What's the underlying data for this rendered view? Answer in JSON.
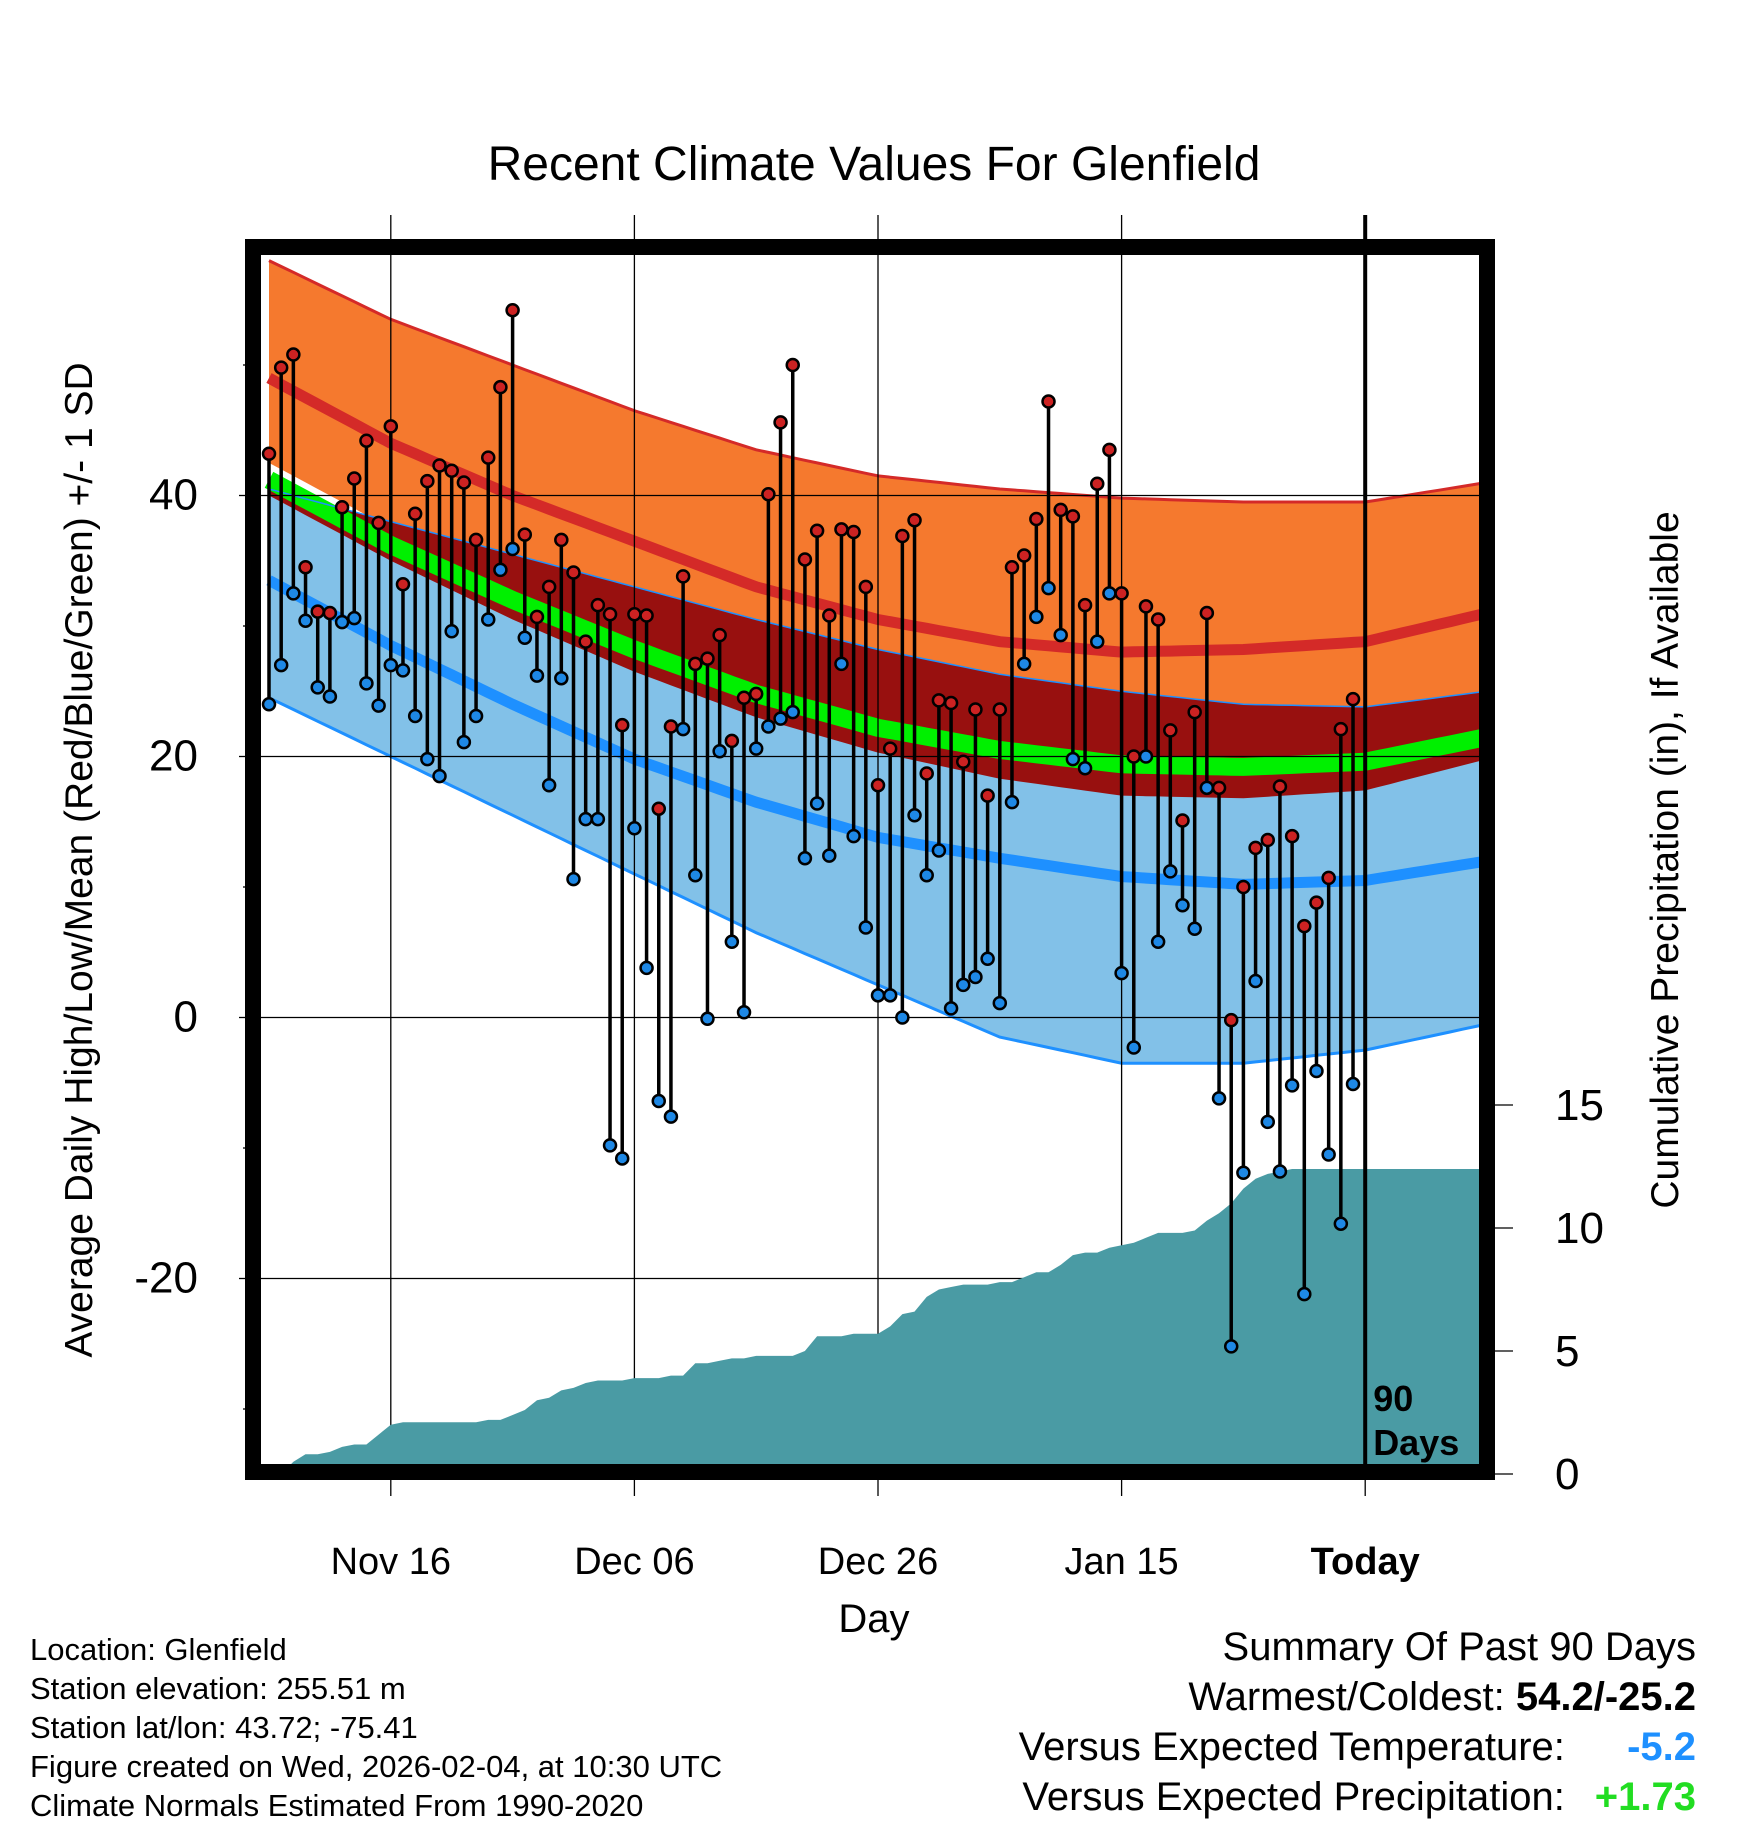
{
  "chart_data": {
    "type": "line",
    "title": "Recent Climate Values For Glenfield",
    "xlabel": "Day",
    "ylabel": "Average Daily High/Low/Mean (Red/Blue/Green) +/- 1 SD",
    "y2label": "Cumulative Precipitation (in), If Available",
    "x_range": [
      -90,
      10
    ],
    "ylim": [
      -34,
      58
    ],
    "y2lim": [
      0,
      17.8
    ],
    "y_ticks": [
      -20,
      0,
      20,
      40
    ],
    "y2_ticks": [
      0,
      5,
      10,
      15
    ],
    "x_ticks": [
      {
        "day": -80,
        "label": "Nov 16"
      },
      {
        "day": -60,
        "label": "Dec 06"
      },
      {
        "day": -40,
        "label": "Dec 26"
      },
      {
        "day": -20,
        "label": "Jan 15"
      },
      {
        "day": 0,
        "label": "Today"
      }
    ],
    "today_day": 0,
    "period_label": [
      "90",
      "Days"
    ],
    "colors": {
      "high_band": "#f5792e",
      "high_line": "#d42a28",
      "low_band": "#82c1e8",
      "low_line": "#1e90ff",
      "mean_band": "#98100f",
      "mean_line": "#00f000",
      "precip": "#4a9ba4",
      "high_dot": "#cc2222",
      "low_dot": "#1e88e5"
    },
    "normals": {
      "days": [
        -90,
        -80,
        -70,
        -60,
        -50,
        -40,
        -30,
        -20,
        -10,
        0,
        10
      ],
      "high_mean": [
        49,
        44,
        40,
        36.5,
        33,
        30.5,
        28.8,
        28,
        28.2,
        28.8,
        31
      ],
      "high_upper": [
        58,
        53.5,
        50,
        46.5,
        43.5,
        41.5,
        40.5,
        39.8,
        39.5,
        39.5,
        41
      ],
      "low_mean": [
        33.5,
        28.5,
        24,
        19.8,
        16.5,
        13.8,
        12.2,
        10.8,
        10.2,
        10.5,
        12
      ],
      "low_lower": [
        24.5,
        20,
        15.5,
        11,
        6.5,
        2.5,
        -1.5,
        -3.5,
        -3.5,
        -2.5,
        -0.5
      ],
      "avg_mean": [
        41.2,
        36.2,
        32,
        28.2,
        24.8,
        22.2,
        20.5,
        19.4,
        19.2,
        19.6,
        21.5
      ],
      "avg_upper": [
        42.5,
        37.5,
        33.3,
        29.5,
        26.1,
        23.5,
        21.8,
        20.7,
        20.5,
        20.9,
        22.8
      ],
      "mean_band_top": [
        40.5,
        38,
        35.5,
        33,
        30.5,
        28.2,
        26.3,
        25,
        24,
        23.8,
        25
      ],
      "mean_band_bottom": [
        40,
        35,
        30.5,
        26.5,
        23,
        20.3,
        18.3,
        17,
        16.8,
        17.4,
        19.8
      ]
    },
    "high_obs": [
      43.2,
      49.8,
      50.8,
      34.5,
      31.1,
      31.0,
      39.1,
      41.3,
      44.2,
      37.9,
      45.3,
      33.2,
      38.6,
      41.1,
      42.3,
      41.9,
      41.0,
      36.6,
      42.9,
      48.3,
      54.2,
      37.0,
      30.7,
      33.0,
      36.6,
      34.1,
      28.8,
      31.6,
      30.9,
      22.4,
      30.9,
      30.8,
      16.0,
      22.3,
      33.8,
      27.1,
      27.5,
      29.3,
      21.2,
      24.5,
      24.8,
      40.1,
      45.6,
      50.0,
      35.1,
      37.3,
      30.8,
      37.4,
      37.2,
      33.0,
      17.8,
      20.6,
      36.9,
      38.1,
      18.7,
      24.3,
      24.1,
      19.6,
      23.6,
      17.0,
      23.6,
      34.5,
      35.4,
      38.2,
      47.2,
      38.9,
      38.4,
      31.6,
      40.9,
      43.5,
      32.5,
      20.0,
      31.5,
      30.5,
      22.0,
      15.1,
      23.4,
      31.0,
      17.6,
      -0.2,
      10.0,
      13.0,
      13.6,
      17.7,
      13.9,
      7.0,
      8.8,
      10.7,
      22.1,
      24.4
    ],
    "low_obs": [
      24.0,
      27.0,
      32.5,
      30.4,
      25.3,
      24.6,
      30.3,
      30.6,
      25.6,
      23.9,
      27.0,
      26.6,
      23.1,
      19.8,
      18.5,
      29.6,
      21.1,
      23.1,
      30.5,
      34.3,
      35.9,
      29.1,
      26.2,
      17.8,
      26.0,
      10.6,
      15.2,
      15.2,
      -9.8,
      -10.8,
      14.5,
      3.8,
      -6.4,
      -7.6,
      22.1,
      10.9,
      -0.1,
      20.4,
      5.8,
      0.4,
      20.6,
      22.3,
      22.9,
      23.4,
      12.2,
      16.4,
      12.4,
      27.1,
      13.9,
      6.9,
      1.7,
      1.7,
      0.0,
      15.5,
      10.9,
      12.8,
      0.7,
      2.5,
      3.1,
      4.5,
      1.1,
      16.5,
      27.1,
      30.7,
      32.9,
      29.3,
      19.8,
      19.1,
      28.8,
      32.5,
      3.4,
      -2.3,
      20.0,
      5.8,
      11.2,
      8.6,
      6.8,
      17.6,
      -6.2,
      -25.2,
      -11.9,
      2.8,
      -8.0,
      -11.8,
      -5.2,
      -21.2,
      -4.1,
      -10.5,
      -15.8,
      -5.1
    ],
    "precip_cum": [
      0.0,
      0.5,
      0.8,
      0.8,
      0.9,
      1.1,
      1.2,
      1.2,
      1.6,
      2.0,
      2.1,
      2.1,
      2.1,
      2.1,
      2.1,
      2.1,
      2.1,
      2.2,
      2.2,
      2.4,
      2.6,
      3.0,
      3.1,
      3.4,
      3.5,
      3.7,
      3.8,
      3.8,
      3.8,
      3.9,
      3.9,
      3.9,
      4.0,
      4.0,
      4.5,
      4.5,
      4.6,
      4.7,
      4.7,
      4.8,
      4.8,
      4.8,
      4.8,
      5.0,
      5.6,
      5.6,
      5.6,
      5.7,
      5.7,
      5.7,
      6.0,
      6.5,
      6.6,
      7.2,
      7.5,
      7.6,
      7.7,
      7.7,
      7.7,
      7.8,
      7.8,
      8.0,
      8.2,
      8.2,
      8.5,
      8.9,
      9.0,
      9.0,
      9.2,
      9.3,
      9.4,
      9.6,
      9.8,
      9.8,
      9.8,
      9.9,
      10.3,
      10.6,
      11.0,
      11.6,
      12.0,
      12.2,
      12.3,
      12.4,
      12.4,
      12.4,
      12.4,
      12.4,
      12.4,
      12.4,
      12.4
    ]
  },
  "info": {
    "location": "Location: Glenfield",
    "elevation": "Station elevation: 255.51 m",
    "latlon": "Station lat/lon: 43.72; -75.41",
    "created": "Figure created on Wed, 2026-02-04, at 10:30 UTC",
    "normals": "Climate Normals Estimated From 1990-2020"
  },
  "summary": {
    "title": "Summary Of Past 90 Days",
    "warm_cold_label": "Warmest/Coldest:",
    "warm_cold_value": "54.2/-25.2",
    "temp_label": "Versus Expected Temperature:",
    "temp_value": "-5.2",
    "precip_label": "Versus Expected Precipitation:",
    "precip_value": "+1.73"
  }
}
